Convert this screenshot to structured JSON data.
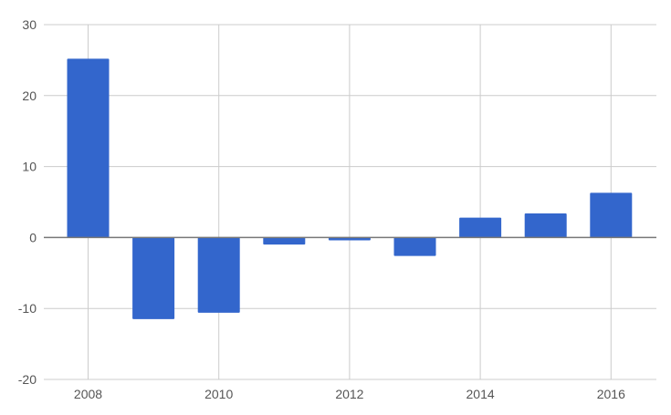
{
  "chart_data": {
    "type": "bar",
    "title": "",
    "xlabel": "",
    "ylabel": "",
    "categories": [
      "2008",
      "2009",
      "2010",
      "2011",
      "2012",
      "2013",
      "2014",
      "2015",
      "2016"
    ],
    "values": [
      25.2,
      -11.5,
      -10.6,
      -1.0,
      -0.4,
      -2.6,
      2.8,
      3.4,
      6.3
    ],
    "ylim": [
      -20,
      30
    ],
    "yticks": [
      -20,
      -10,
      0,
      10,
      20,
      30
    ],
    "xticks": [
      "2008",
      "2010",
      "2012",
      "2014",
      "2016"
    ],
    "grid": true,
    "legend": "none",
    "bar_color": "#3366cc"
  }
}
